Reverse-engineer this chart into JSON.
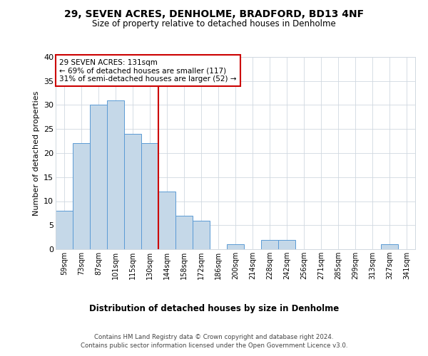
{
  "title1": "29, SEVEN ACRES, DENHOLME, BRADFORD, BD13 4NF",
  "title2": "Size of property relative to detached houses in Denholme",
  "xlabel": "Distribution of detached houses by size in Denholme",
  "ylabel": "Number of detached properties",
  "categories": [
    "59sqm",
    "73sqm",
    "87sqm",
    "101sqm",
    "115sqm",
    "130sqm",
    "144sqm",
    "158sqm",
    "172sqm",
    "186sqm",
    "200sqm",
    "214sqm",
    "228sqm",
    "242sqm",
    "256sqm",
    "271sqm",
    "285sqm",
    "299sqm",
    "313sqm",
    "327sqm",
    "341sqm"
  ],
  "values": [
    8,
    22,
    30,
    31,
    24,
    22,
    12,
    7,
    6,
    0,
    1,
    0,
    2,
    2,
    0,
    0,
    0,
    0,
    0,
    1,
    0
  ],
  "bar_color": "#c5d8e8",
  "bar_edgecolor": "#5b9bd5",
  "vline_x_index": 5,
  "vline_color": "#cc0000",
  "annotation_line1": "29 SEVEN ACRES: 131sqm",
  "annotation_line2": "← 69% of detached houses are smaller (117)",
  "annotation_line3": "31% of semi-detached houses are larger (52) →",
  "annotation_box_color": "#cc0000",
  "ylim": [
    0,
    40
  ],
  "yticks": [
    0,
    5,
    10,
    15,
    20,
    25,
    30,
    35,
    40
  ],
  "footer1": "Contains HM Land Registry data © Crown copyright and database right 2024.",
  "footer2": "Contains public sector information licensed under the Open Government Licence v3.0.",
  "bg_color": "#ffffff",
  "grid_color": "#d0d8e0"
}
